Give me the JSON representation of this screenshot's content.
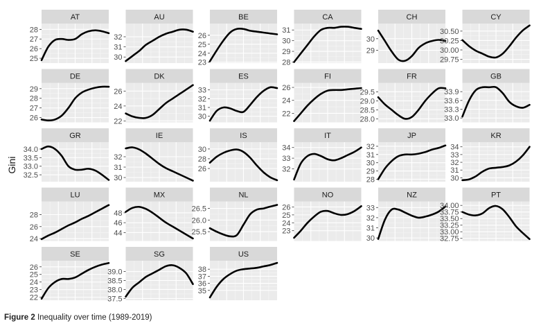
{
  "chart_data": {
    "type": "line",
    "facet": "small-multiples",
    "ylabel": "Gini",
    "x_range": [
      1989,
      2019
    ],
    "grid": true,
    "panels": [
      {
        "label": "AT",
        "ylim": [
          24.5,
          28.6
        ],
        "yticks": [
          25,
          26,
          27,
          28
        ],
        "x": [
          1989,
          1992,
          1995,
          1998,
          2001,
          2004,
          2007,
          2010,
          2013,
          2016,
          2019
        ],
        "y": [
          24.8,
          26.2,
          26.9,
          27.0,
          26.9,
          27.0,
          27.5,
          27.8,
          27.9,
          27.8,
          27.6
        ]
      },
      {
        "label": "AU",
        "ylim": [
          29.4,
          33.3
        ],
        "yticks": [
          30,
          31,
          32
        ],
        "x": [
          1989,
          1992,
          1995,
          1998,
          2001,
          2004,
          2007,
          2010,
          2013,
          2016,
          2019
        ],
        "y": [
          29.6,
          30.1,
          30.6,
          31.2,
          31.6,
          32.0,
          32.3,
          32.5,
          32.7,
          32.7,
          32.5
        ]
      },
      {
        "label": "BE",
        "ylim": [
          22.9,
          27.3
        ],
        "yticks": [
          23,
          24,
          25,
          26
        ],
        "x": [
          1989,
          1992,
          1995,
          1998,
          2001,
          2004,
          2007,
          2010,
          2013,
          2016,
          2019
        ],
        "y": [
          23.1,
          24.3,
          25.4,
          26.3,
          26.7,
          26.7,
          26.5,
          26.4,
          26.3,
          26.2,
          26.1
        ]
      },
      {
        "label": "CA",
        "ylim": [
          27.9,
          31.6
        ],
        "yticks": [
          28,
          29,
          30,
          31
        ],
        "x": [
          1989,
          1992,
          1995,
          1998,
          2001,
          2004,
          2007,
          2010,
          2013,
          2016,
          2019
        ],
        "y": [
          28.0,
          28.8,
          29.6,
          30.4,
          31.0,
          31.2,
          31.2,
          31.3,
          31.3,
          31.2,
          31.1
        ]
      },
      {
        "label": "CH",
        "ylim": [
          27.9,
          31.3
        ],
        "yticks": [
          29,
          30
        ],
        "x": [
          1989,
          1992,
          1995,
          1998,
          2001,
          2004,
          2007,
          2010,
          2013,
          2016,
          2019
        ],
        "y": [
          30.7,
          29.8,
          28.9,
          28.2,
          28.1,
          28.5,
          29.2,
          29.6,
          29.8,
          29.9,
          29.8
        ]
      },
      {
        "label": "CY",
        "ylim": [
          29.65,
          30.7
        ],
        "yticks": [
          29.75,
          30.0,
          30.25,
          30.5
        ],
        "x": [
          1989,
          1992,
          1995,
          1998,
          2001,
          2004,
          2007,
          2010,
          2013,
          2016,
          2019
        ],
        "y": [
          30.26,
          30.1,
          29.98,
          29.9,
          29.82,
          29.8,
          29.9,
          30.1,
          30.33,
          30.52,
          30.65
        ]
      },
      {
        "label": "DE",
        "ylim": [
          25.5,
          29.6
        ],
        "yticks": [
          26,
          27,
          28,
          29
        ],
        "x": [
          1989,
          1992,
          1995,
          1998,
          2001,
          2004,
          2007,
          2010,
          2013,
          2016,
          2019
        ],
        "y": [
          25.8,
          25.7,
          25.8,
          26.2,
          27.0,
          28.0,
          28.6,
          28.9,
          29.1,
          29.2,
          29.2
        ]
      },
      {
        "label": "DK",
        "ylim": [
          21.8,
          27.1
        ],
        "yticks": [
          22,
          24,
          26
        ],
        "x": [
          1989,
          1992,
          1995,
          1998,
          2001,
          2004,
          2007,
          2010,
          2013,
          2016,
          2019
        ],
        "y": [
          23.0,
          22.6,
          22.4,
          22.4,
          22.8,
          23.6,
          24.4,
          25.0,
          25.6,
          26.2,
          26.8
        ]
      },
      {
        "label": "ES",
        "ylim": [
          29.3,
          33.8
        ],
        "yticks": [
          30,
          31,
          32,
          33
        ],
        "x": [
          1989,
          1992,
          1995,
          1998,
          2001,
          2004,
          2007,
          2010,
          2013,
          2016,
          2019
        ],
        "y": [
          29.5,
          30.6,
          31.0,
          30.9,
          30.6,
          30.5,
          31.3,
          32.2,
          32.9,
          33.3,
          33.2
        ]
      },
      {
        "label": "FI",
        "ylim": [
          20.6,
          26.7
        ],
        "yticks": [
          22,
          24,
          26
        ],
        "x": [
          1989,
          1992,
          1995,
          1998,
          2001,
          2004,
          2007,
          2010,
          2013,
          2016,
          2019
        ],
        "y": [
          20.8,
          22.0,
          23.2,
          24.2,
          25.0,
          25.5,
          25.6,
          25.6,
          25.7,
          25.8,
          25.9
        ]
      },
      {
        "label": "FR",
        "ylim": [
          27.8,
          30.0
        ],
        "yticks": [
          28.0,
          28.5,
          29.0,
          29.5
        ],
        "x": [
          1989,
          1992,
          1995,
          1998,
          2001,
          2004,
          2007,
          2010,
          2013,
          2016,
          2019
        ],
        "y": [
          29.2,
          28.8,
          28.5,
          28.2,
          28.0,
          28.1,
          28.5,
          29.0,
          29.4,
          29.7,
          29.7
        ]
      },
      {
        "label": "GB",
        "ylim": [
          32.85,
          34.2
        ],
        "yticks": [
          33.0,
          33.3,
          33.6,
          33.9
        ],
        "x": [
          1989,
          1992,
          1995,
          1998,
          2001,
          2004,
          2007,
          2010,
          2013,
          2016,
          2019
        ],
        "y": [
          33.05,
          33.6,
          33.95,
          34.05,
          34.05,
          34.05,
          33.85,
          33.55,
          33.4,
          33.35,
          33.45
        ]
      },
      {
        "label": "GR",
        "ylim": [
          32.1,
          34.4
        ],
        "yticks": [
          32.5,
          33.0,
          33.5,
          34.0
        ],
        "x": [
          1989,
          1992,
          1995,
          1998,
          2001,
          2004,
          2007,
          2010,
          2013,
          2016,
          2019
        ],
        "y": [
          34.0,
          34.15,
          34.0,
          33.6,
          33.0,
          32.8,
          32.8,
          32.85,
          32.75,
          32.5,
          32.2
        ]
      },
      {
        "label": "IE",
        "ylim": [
          29.6,
          33.4
        ],
        "yticks": [
          30,
          31,
          32
        ],
        "x": [
          1989,
          1992,
          1995,
          1998,
          2001,
          2004,
          2007,
          2010,
          2013,
          2016,
          2019
        ],
        "y": [
          32.8,
          32.9,
          32.7,
          32.3,
          31.8,
          31.3,
          30.9,
          30.6,
          30.3,
          30.0,
          29.7
        ]
      },
      {
        "label": "IS",
        "ylim": [
          23.3,
          31.4
        ],
        "yticks": [
          26,
          28,
          30
        ],
        "x": [
          1989,
          1992,
          1995,
          1998,
          2001,
          2004,
          2007,
          2010,
          2013,
          2016,
          2019
        ],
        "y": [
          27.2,
          28.4,
          29.2,
          29.7,
          29.9,
          29.4,
          28.2,
          26.6,
          25.2,
          24.2,
          23.6
        ]
      },
      {
        "label": "IT",
        "ylim": [
          30.8,
          34.5
        ],
        "yticks": [
          32,
          33,
          34
        ],
        "x": [
          1989,
          1992,
          1995,
          1998,
          2001,
          2004,
          2007,
          2010,
          2013,
          2016,
          2019
        ],
        "y": [
          31.0,
          32.5,
          33.2,
          33.4,
          33.2,
          32.9,
          32.8,
          33.0,
          33.3,
          33.6,
          34.0
        ]
      },
      {
        "label": "JP",
        "ylim": [
          27.7,
          32.5
        ],
        "yticks": [
          28,
          29,
          30,
          31,
          32
        ],
        "x": [
          1989,
          1992,
          1995,
          1998,
          2001,
          2004,
          2007,
          2010,
          2013,
          2016,
          2019
        ],
        "y": [
          28.0,
          29.3,
          30.2,
          30.8,
          31.0,
          31.0,
          31.1,
          31.3,
          31.6,
          31.8,
          32.1
        ]
      },
      {
        "label": "KR",
        "ylim": [
          29.5,
          34.6
        ],
        "yticks": [
          30,
          31,
          32,
          33,
          34
        ],
        "x": [
          1989,
          1992,
          1995,
          1998,
          2001,
          2004,
          2007,
          2010,
          2013,
          2016,
          2019
        ],
        "y": [
          29.7,
          29.8,
          30.2,
          30.8,
          31.2,
          31.3,
          31.4,
          31.6,
          32.1,
          32.9,
          34.0
        ]
      },
      {
        "label": "LU",
        "ylim": [
          23.6,
          30.2
        ],
        "yticks": [
          24,
          26,
          28
        ],
        "x": [
          1989,
          1992,
          1995,
          1998,
          2001,
          2004,
          2007,
          2010,
          2013,
          2016,
          2019
        ],
        "y": [
          23.9,
          24.5,
          25.0,
          25.6,
          26.2,
          26.7,
          27.3,
          27.8,
          28.4,
          29.0,
          29.6
        ]
      },
      {
        "label": "MX",
        "ylim": [
          42.3,
          50.3
        ],
        "yticks": [
          44,
          46,
          48
        ],
        "x": [
          1989,
          1992,
          1995,
          1998,
          2001,
          2004,
          2007,
          2010,
          2013,
          2016,
          2019
        ],
        "y": [
          48.2,
          49.0,
          49.2,
          48.8,
          48.0,
          47.0,
          46.0,
          45.2,
          44.4,
          43.6,
          42.8
        ]
      },
      {
        "label": "NL",
        "ylim": [
          25.1,
          26.8
        ],
        "yticks": [
          25.5,
          26.0,
          26.5
        ],
        "x": [
          1989,
          1992,
          1995,
          1998,
          2001,
          2004,
          2007,
          2010,
          2013,
          2016,
          2019
        ],
        "y": [
          25.65,
          25.5,
          25.38,
          25.3,
          25.35,
          25.8,
          26.25,
          26.45,
          26.5,
          26.58,
          26.65
        ]
      },
      {
        "label": "NO",
        "ylim": [
          21.7,
          26.7
        ],
        "yticks": [
          23,
          24,
          25,
          26
        ],
        "x": [
          1989,
          1992,
          1995,
          1998,
          2001,
          2004,
          2007,
          2010,
          2013,
          2016,
          2019
        ],
        "y": [
          22.1,
          23.0,
          24.0,
          24.8,
          25.4,
          25.5,
          25.2,
          25.0,
          25.1,
          25.5,
          26.1
        ]
      },
      {
        "label": "NZ",
        "ylim": [
          29.7,
          33.6
        ],
        "yticks": [
          30,
          31,
          32,
          33
        ],
        "x": [
          1989,
          1992,
          1995,
          1998,
          2001,
          2004,
          2007,
          2010,
          2013,
          2016,
          2019
        ],
        "y": [
          29.9,
          31.8,
          32.8,
          32.8,
          32.5,
          32.2,
          32.0,
          32.1,
          32.3,
          32.6,
          33.1
        ]
      },
      {
        "label": "PT",
        "ylim": [
          32.65,
          34.15
        ],
        "yticks": [
          32.75,
          33.0,
          33.25,
          33.5,
          33.75,
          34.0
        ],
        "x": [
          1989,
          1992,
          1995,
          1998,
          2001,
          2004,
          2007,
          2010,
          2013,
          2016,
          2019
        ],
        "y": [
          33.75,
          33.65,
          33.62,
          33.7,
          33.9,
          33.98,
          33.85,
          33.55,
          33.2,
          32.95,
          32.72
        ]
      },
      {
        "label": "SE",
        "ylim": [
          21.6,
          26.8
        ],
        "yticks": [
          22,
          23,
          24,
          25,
          26
        ],
        "x": [
          1989,
          1992,
          1995,
          1998,
          2001,
          2004,
          2007,
          2010,
          2013,
          2016,
          2019
        ],
        "y": [
          21.8,
          23.2,
          24.0,
          24.4,
          24.4,
          24.6,
          25.1,
          25.6,
          26.0,
          26.3,
          26.5
        ]
      },
      {
        "label": "SG",
        "ylim": [
          37.4,
          39.6
        ],
        "yticks": [
          37.5,
          38.0,
          38.5,
          39.0
        ],
        "x": [
          1989,
          1992,
          1995,
          1998,
          2001,
          2004,
          2007,
          2010,
          2013,
          2016,
          2019
        ],
        "y": [
          37.6,
          38.1,
          38.4,
          38.7,
          38.9,
          39.1,
          39.3,
          39.35,
          39.2,
          38.9,
          38.3
        ]
      },
      {
        "label": "US",
        "ylim": [
          33.6,
          39.2
        ],
        "yticks": [
          35,
          36,
          37,
          38
        ],
        "x": [
          1989,
          1992,
          1995,
          1998,
          2001,
          2004,
          2007,
          2010,
          2013,
          2016,
          2019
        ],
        "y": [
          34.0,
          35.5,
          36.6,
          37.3,
          37.8,
          38.0,
          38.1,
          38.2,
          38.4,
          38.6,
          38.9
        ]
      }
    ]
  },
  "caption": {
    "label": "Figure 2",
    "text": "Inequality over time (1989-2019)"
  }
}
